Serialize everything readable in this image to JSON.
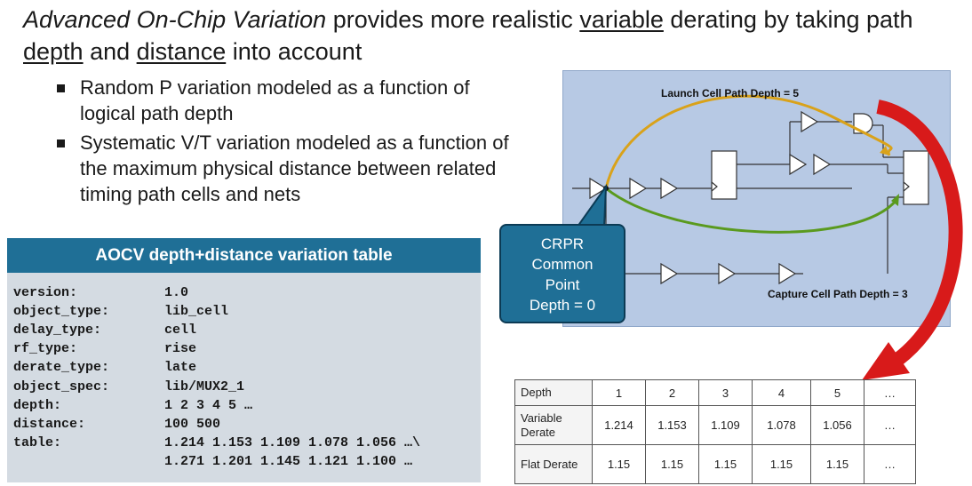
{
  "headline": {
    "part1": "Advanced On-Chip Variation",
    "part2": " provides more realistic ",
    "part3": "variable",
    "part4": " derating by taking path ",
    "part5": "depth",
    "part6": " and ",
    "part7": "distance",
    "part8": " into account"
  },
  "bullets": [
    "Random P variation modeled as a function of logical path depth",
    "Systematic V/T variation modeled as a function of the maximum physical distance between related timing path cells and nets"
  ],
  "aocv_table": {
    "title": "AOCV depth+distance variation table",
    "rows": [
      {
        "key": "version:",
        "value": "1.0"
      },
      {
        "key": "object_type:",
        "value": "lib_cell"
      },
      {
        "key": "delay_type:",
        "value": "cell"
      },
      {
        "key": "rf_type:",
        "value": "rise"
      },
      {
        "key": "derate_type:",
        "value": "late"
      },
      {
        "key": "object_spec:",
        "value": "lib/MUX2_1"
      },
      {
        "key": "depth:",
        "value": "1 2 3 4 5 …"
      },
      {
        "key": "distance:",
        "value": "100 500"
      },
      {
        "key": "table:",
        "value": "1.214 1.153 1.109 1.078 1.056 …\\"
      },
      {
        "key": "",
        "value": "1.271 1.201 1.145 1.121 1.100 …"
      }
    ]
  },
  "diagram": {
    "launch_label": "Launch Cell Path Depth = 5",
    "capture_label": "Capture Cell Path Depth = 3",
    "crpr_label": [
      "CRPR",
      "Common",
      "Point",
      "Depth = 0"
    ],
    "colors": {
      "launch": "#d9a21a",
      "capture": "#5a9a1e",
      "arrow": "#d81a1a"
    }
  },
  "derate_table": {
    "header": [
      "Depth",
      "1",
      "2",
      "3",
      "4",
      "5",
      "…"
    ],
    "variable": [
      "Variable Derate",
      "1.214",
      "1.153",
      "1.109",
      "1.078",
      "1.056",
      "…"
    ],
    "flat": [
      "Flat Derate",
      "1.15",
      "1.15",
      "1.15",
      "1.15",
      "1.15",
      "…"
    ]
  }
}
